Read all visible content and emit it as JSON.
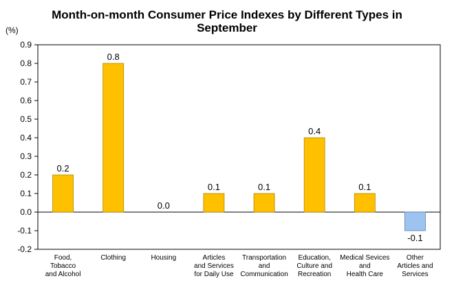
{
  "chart_data": {
    "type": "bar",
    "title_lines": [
      "Month-on-month Consumer Price Indexes by Different Types in",
      "September"
    ],
    "unit": "(%)",
    "categories": [
      [
        "Food,",
        "Tobacco",
        "and Alcohol"
      ],
      [
        "Clothing"
      ],
      [
        "Housing"
      ],
      [
        "Articles",
        "and Services",
        "for Daily Use"
      ],
      [
        "Transportation",
        "and",
        "Communication"
      ],
      [
        "Education,",
        "Culture and",
        "Recreation"
      ],
      [
        "Medical Sevices",
        "and",
        "Health Care"
      ],
      [
        "Other",
        "Articles and",
        "Services"
      ]
    ],
    "values": [
      0.2,
      0.8,
      0.0,
      0.1,
      0.1,
      0.4,
      0.1,
      -0.1
    ],
    "value_labels": [
      "0.2",
      "0.8",
      "0.0",
      "0.1",
      "0.1",
      "0.4",
      "0.1",
      "-0.1"
    ],
    "ylim": [
      -0.2,
      0.9
    ],
    "yticks": [
      -0.2,
      -0.1,
      0.0,
      0.1,
      0.2,
      0.3,
      0.4,
      0.5,
      0.6,
      0.7,
      0.8,
      0.9
    ],
    "ytick_labels": [
      "-0.2",
      "-0.1",
      "0.0",
      "0.1",
      "0.2",
      "0.3",
      "0.4",
      "0.5",
      "0.6",
      "0.7",
      "0.8",
      "0.9"
    ],
    "grid": false,
    "legend": "none",
    "colors": {
      "positive": "#FFC000",
      "positive_edge": "#B08400",
      "negative": "#9DC3F0",
      "negative_edge": "#5B7FB0",
      "axis": "#000000"
    }
  }
}
